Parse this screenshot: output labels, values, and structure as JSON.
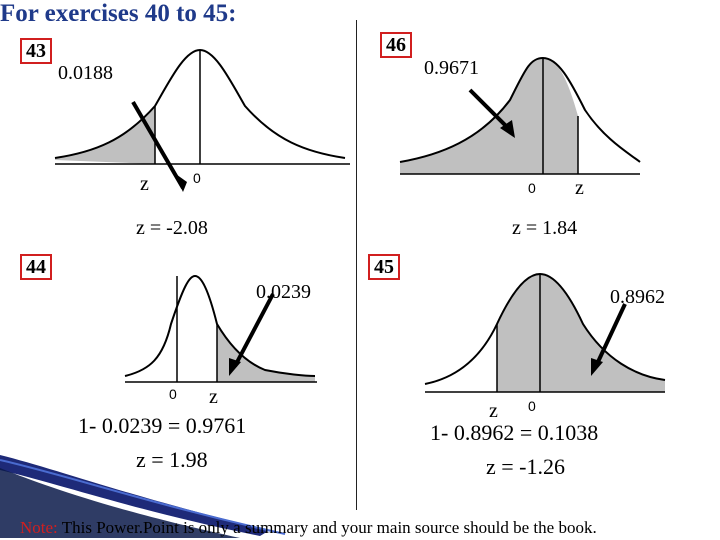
{
  "title": "For exercises 40 to 45:",
  "panels": {
    "p43": {
      "badge": "43",
      "prob": "0.0188",
      "z_label": "z",
      "zero": "0",
      "result": "z = -2.08"
    },
    "p46": {
      "badge": "46",
      "prob": "0.9671",
      "z_label": "z",
      "zero": "0",
      "result": "z = 1.84"
    },
    "p44": {
      "badge": "44",
      "prob": "0.0239",
      "z_label": "z",
      "zero": "0",
      "calc": "1- 0.0239 = 0.9761",
      "result": "z = 1.98"
    },
    "p45": {
      "badge": "45",
      "prob": "0.8962",
      "z_label": "z",
      "zero": "0",
      "calc": "1- 0.8962 = 0.1038",
      "result": "z = -1.26"
    }
  },
  "footer": {
    "note_label": "Note:",
    "text": " This Power.Point is only a summary and your main source should be the book."
  },
  "colors": {
    "title": "#1f3a8a",
    "badge_border": "#d11f1f",
    "shade": "#c0c0c0"
  }
}
